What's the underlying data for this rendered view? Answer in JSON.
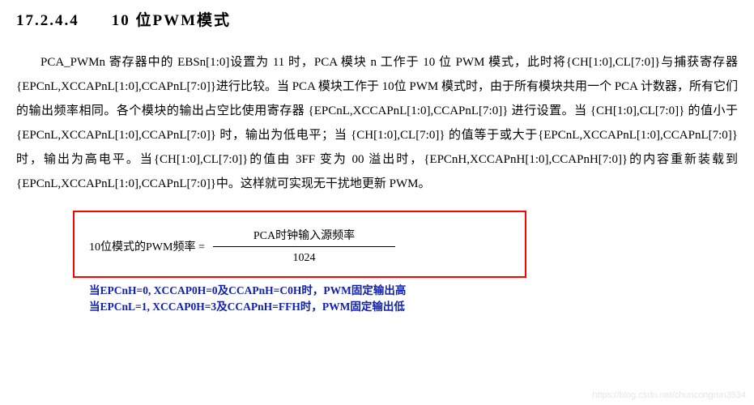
{
  "heading": {
    "number": "17.2.4.4",
    "title": "10 位PWM模式"
  },
  "paragraph": "PCA_PWMn 寄存器中的 EBSn[1:0]设置为 11 时，PCA 模块 n 工作于 10 位 PWM 模式，此时将{CH[1:0],CL[7:0]}与捕获寄存器{EPCnL,XCCAPnL[1:0],CCAPnL[7:0]}进行比较。当 PCA 模块工作于 10位 PWM 模式时，由于所有模块共用一个 PCA 计数器，所有它们的输出频率相同。各个模块的输出占空比使用寄存器 {EPCnL,XCCAPnL[1:0],CCAPnL[7:0]} 进行设置。当 {CH[1:0],CL[7:0]} 的值小于{EPCnL,XCCAPnL[1:0],CCAPnL[7:0]} 时，输出为低电平；当 {CH[1:0],CL[7:0]} 的值等于或大于{EPCnL,XCCAPnL[1:0],CCAPnL[7:0]}时，输出为高电平。当{CH[1:0],CL[7:0]}的值由 3FF 变为 00 溢出时，{EPCnH,XCCAPnH[1:0],CCAPnH[7:0]}的内容重新装载到{EPCnL,XCCAPnL[1:0],CCAPnL[7:0]}中。这样就可实现无干扰地更新 PWM。",
  "formula": {
    "label": "10位模式的PWM频率 =",
    "numerator": "PCA时钟输入源频率",
    "denominator": "1024",
    "border_color": "#ff0000"
  },
  "notes": {
    "line1": "当EPCnH=0, XCCAP0H=0及CCAPnH=C0H时，PWM固定输出高",
    "line2": "当EPCnL=1, XCCAP0H=3及CCAPnH=FFH时，PWM固定输出低",
    "color": "#1020b0"
  },
  "watermark": "https://blog.csdn.net/chuncongrun3534"
}
